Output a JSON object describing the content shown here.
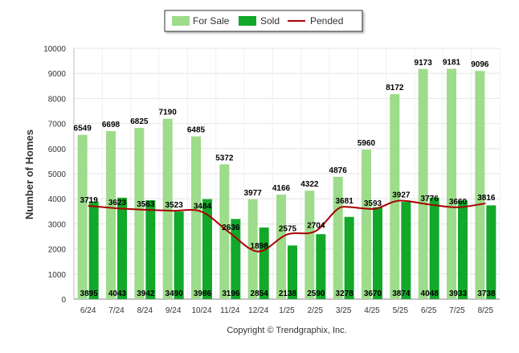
{
  "legend": {
    "items": [
      {
        "label": "For Sale",
        "color": "#9ddc8a",
        "kind": "bar"
      },
      {
        "label": "Sold",
        "color": "#12a829",
        "kind": "bar"
      },
      {
        "label": "Pended",
        "color": "#a80000",
        "kind": "line"
      }
    ]
  },
  "copyright": "Copyright © Trendgraphix, Inc.",
  "chart_data": {
    "type": "bar",
    "categories": [
      "6/24",
      "7/24",
      "8/24",
      "9/24",
      "10/24",
      "11/24",
      "12/24",
      "1/25",
      "2/25",
      "3/25",
      "4/25",
      "5/25",
      "6/25",
      "7/25",
      "8/25"
    ],
    "ylabel": "Number of Homes",
    "xlabel": "",
    "ylim": [
      0,
      10000
    ],
    "yticks": [
      0,
      1000,
      2000,
      3000,
      4000,
      5000,
      6000,
      7000,
      8000,
      9000,
      10000
    ],
    "grid": true,
    "legend_position": "top-center",
    "series": [
      {
        "name": "For Sale",
        "type": "bar",
        "color": "#9ddc8a",
        "values": [
          6549,
          6698,
          6825,
          7190,
          6485,
          5372,
          3977,
          4166,
          4322,
          4876,
          5960,
          8172,
          9173,
          9181,
          9096
        ]
      },
      {
        "name": "Sold",
        "type": "bar",
        "color": "#12a829",
        "values": [
          3895,
          4043,
          3942,
          3490,
          3986,
          3196,
          2854,
          2138,
          2590,
          3278,
          3670,
          3874,
          4048,
          3933,
          3738
        ]
      },
      {
        "name": "Pended",
        "type": "line",
        "color": "#a80000",
        "values": [
          3719,
          3623,
          3563,
          3523,
          3484,
          2636,
          1898,
          2575,
          2704,
          3681,
          3593,
          3927,
          3776,
          3660,
          3816
        ]
      }
    ]
  }
}
